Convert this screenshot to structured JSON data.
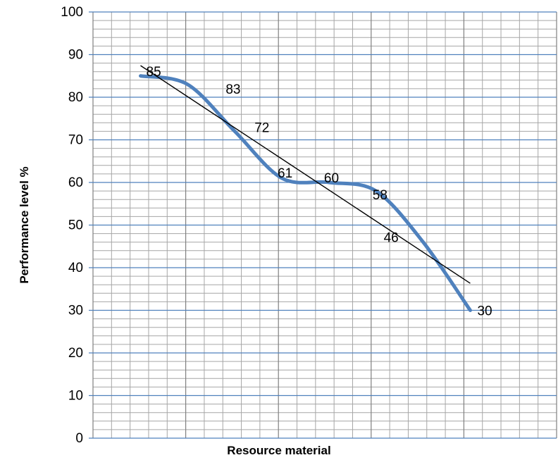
{
  "chart_data": {
    "type": "line",
    "title": "",
    "xlabel": "Resource material",
    "ylabel": "Performance level %",
    "ylim": [
      0,
      100
    ],
    "y_ticks": [
      0,
      10,
      20,
      30,
      40,
      50,
      60,
      70,
      80,
      90,
      100
    ],
    "x": [
      1,
      2,
      3,
      4,
      5,
      6,
      7,
      8
    ],
    "series": [
      {
        "values": [
          85,
          83,
          72,
          61,
          60,
          58,
          46,
          30
        ]
      }
    ],
    "data_labels": [
      "85",
      "83",
      "72",
      "61",
      "60",
      "58",
      "46",
      "30"
    ],
    "trendline": {
      "type": "linear"
    },
    "grid": {
      "major": true,
      "minor": true
    },
    "legend": "none",
    "colors": {
      "series": "#4F81BD",
      "trendline": "#000000",
      "major_grid_h": "#4F81BD",
      "major_grid_v": "#808080",
      "minor_grid": "#A6A6A6"
    }
  }
}
